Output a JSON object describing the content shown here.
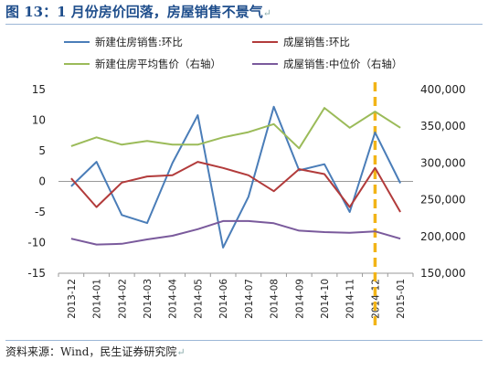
{
  "header": {
    "title": "图 13：1 月份房价回落，房屋销售不景气",
    "para_mark": "↵"
  },
  "footer": {
    "source": "资料来源：Wind，民生证券研究院",
    "para_mark": "↵"
  },
  "chart_data": {
    "type": "line",
    "categories": [
      "2013-12",
      "2014-01",
      "2014-02",
      "2014-03",
      "2014-04",
      "2014-05",
      "2014-06",
      "2014-07",
      "2014-08",
      "2014-09",
      "2014-10",
      "2014-11",
      "2014-12",
      "2015-01"
    ],
    "y_left": {
      "min": -15,
      "max": 15,
      "ticks": [
        -15,
        -10,
        -5,
        0,
        5,
        10,
        15
      ],
      "tick_labels": [
        "-15",
        "-10",
        "-5",
        "0",
        "5",
        "10",
        "15"
      ]
    },
    "y_right": {
      "min": 150000,
      "max": 400000,
      "ticks": [
        150000,
        200000,
        250000,
        300000,
        350000,
        400000
      ],
      "tick_labels": [
        "150,000",
        "200,000",
        "250,000",
        "300,000",
        "350,000",
        "400,000"
      ]
    },
    "grid": false,
    "legend_position": "top",
    "highlight_category": "2014-12",
    "highlight_color": "#f2b417",
    "series": [
      {
        "name": "新建住房销售:环比",
        "axis": "left",
        "color": "#4a7db8",
        "values": [
          -0.8,
          3.2,
          -5.5,
          -6.8,
          3.0,
          10.8,
          -10.8,
          -2.5,
          12.2,
          1.8,
          2.8,
          -5.0,
          8.0,
          -0.3
        ]
      },
      {
        "name": "成屋销售:环比",
        "axis": "left",
        "color": "#b23b3b",
        "values": [
          0.5,
          -4.2,
          -0.2,
          0.8,
          1.0,
          3.2,
          2.2,
          1.0,
          -1.6,
          2.0,
          1.2,
          -4.2,
          2.2,
          -5.0
        ]
      },
      {
        "name": "新建住房平均售价（右轴）",
        "axis": "right",
        "color": "#9bbb59",
        "values": [
          323000,
          335000,
          325000,
          330000,
          325000,
          325000,
          335000,
          342000,
          353000,
          320000,
          375000,
          348000,
          370000,
          348000
        ]
      },
      {
        "name": "成屋销售:中位价（右轴）",
        "axis": "right",
        "color": "#7a5a9c",
        "values": [
          197000,
          189000,
          190000,
          196000,
          201000,
          210000,
          221000,
          221000,
          218000,
          208000,
          206000,
          205000,
          207000,
          197000
        ]
      }
    ]
  }
}
